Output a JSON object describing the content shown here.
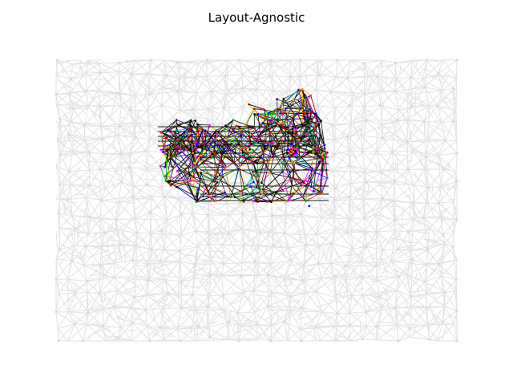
{
  "figure": {
    "title": "Layout-Agnostic"
  },
  "graph": {
    "background_edge_color": "#e2e2e2",
    "highlight_edge_colors": [
      "#000000",
      "#1f1f1f",
      "#00b000",
      "#0000ff",
      "#ff0000",
      "#ffd700",
      "#ff00ff",
      "#00bfbf",
      "#ff8c00",
      "#8b4513"
    ],
    "node_colors": [
      "#000000",
      "#ff00ff",
      "#0000ff",
      "#00a000",
      "#ff0000",
      "#ffa500",
      "#8b0000"
    ]
  }
}
